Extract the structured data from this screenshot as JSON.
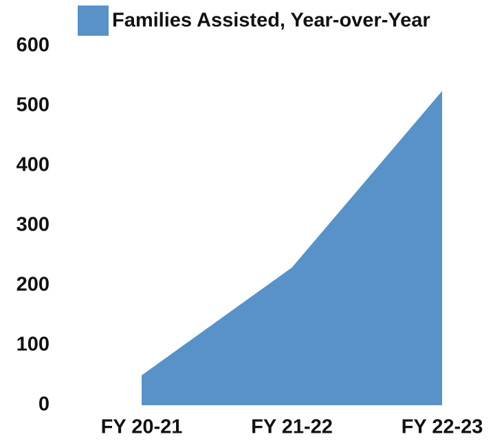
{
  "chart_data": {
    "type": "area",
    "categories": [
      "FY 20-21",
      "FY 21-22",
      "FY 22-23"
    ],
    "series": [
      {
        "name": "Families Assisted, Year-over-Year",
        "color": "#5892c8",
        "values": [
          50,
          230,
          525
        ]
      }
    ],
    "ylim": [
      0,
      600
    ],
    "yticks": [
      0,
      100,
      200,
      300,
      400,
      500,
      600
    ],
    "legend": "top",
    "grid": false
  }
}
